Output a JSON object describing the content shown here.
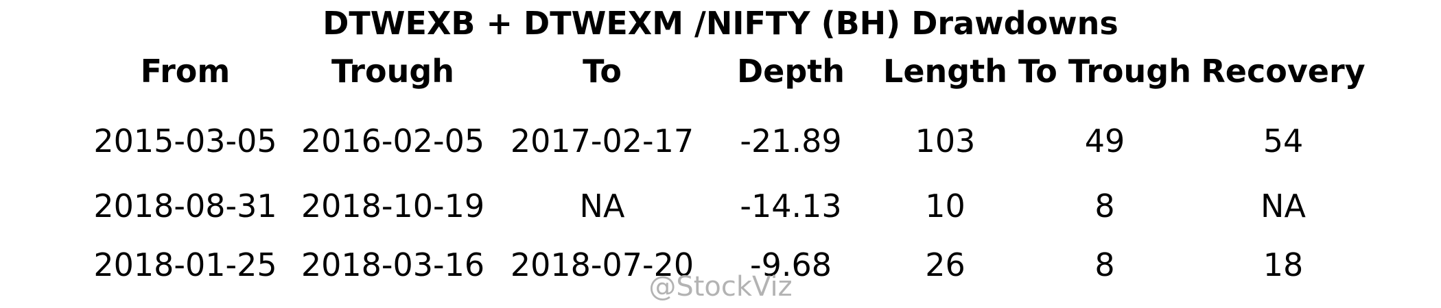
{
  "chart_data": {
    "type": "table",
    "title": "DTWEXB + DTWEXM /NIFTY (BH) Drawdowns",
    "columns": [
      "From",
      "Trough",
      "To",
      "Depth",
      "Length",
      "To Trough",
      "Recovery"
    ],
    "rows": [
      [
        "2015-03-05",
        "2016-02-05",
        "2017-02-17",
        "-21.89",
        "103",
        "49",
        "54"
      ],
      [
        "2018-08-31",
        "2018-10-19",
        "NA",
        "-14.13",
        "10",
        "8",
        "NA"
      ],
      [
        "2018-01-25",
        "2018-03-16",
        "2018-07-20",
        "-9.68",
        "26",
        "8",
        "18"
      ]
    ]
  },
  "watermark": "@StockViz",
  "colors": {
    "text": "#000000",
    "watermark": "#b3b3b3",
    "background": "#ffffff"
  }
}
